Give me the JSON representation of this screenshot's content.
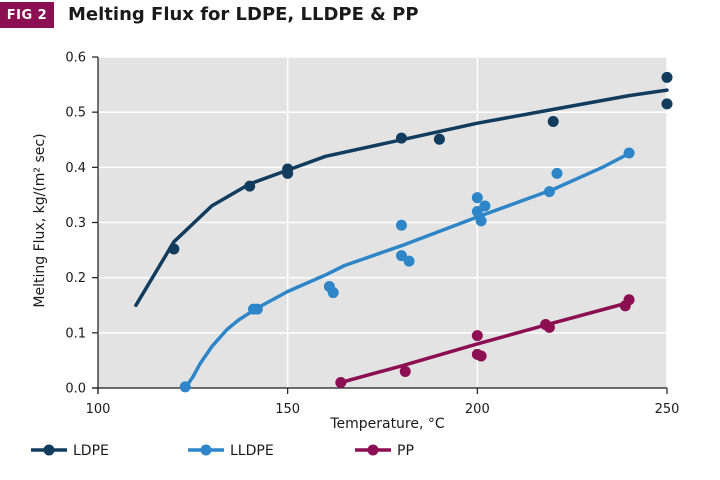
{
  "figure": {
    "badge": "FIG 2"
  },
  "chart_data": {
    "type": "line",
    "title": "Melting Flux for LDPE, LLDPE & PP",
    "xlabel": "Temperature, °C",
    "ylabel": "Melting Flux, kg/(m² sec)",
    "xlim": [
      100,
      250
    ],
    "ylim": [
      0,
      0.6
    ],
    "xticks": [
      100,
      150,
      200,
      250
    ],
    "xtick_labels": [
      "100",
      "150",
      "200",
      "250"
    ],
    "yticks": [
      0.0,
      0.1,
      0.2,
      0.3,
      0.4,
      0.5,
      0.6
    ],
    "ytick_labels": [
      "0.0",
      "0.1",
      "0.2",
      "0.3",
      "0.4",
      "0.5",
      "0.6"
    ],
    "grid": true,
    "legend_position": "bottom",
    "series": [
      {
        "name": "LDPE",
        "color": "#123c5e",
        "line": [
          [
            110,
            0.15
          ],
          [
            120,
            0.265
          ],
          [
            130,
            0.33
          ],
          [
            140,
            0.37
          ],
          [
            150,
            0.395
          ],
          [
            160,
            0.42
          ],
          [
            180,
            0.45
          ],
          [
            200,
            0.48
          ],
          [
            220,
            0.505
          ],
          [
            240,
            0.53
          ],
          [
            250,
            0.54
          ]
        ],
        "points": [
          [
            120,
            0.252
          ],
          [
            140,
            0.366
          ],
          [
            150,
            0.397
          ],
          [
            150,
            0.389
          ],
          [
            180,
            0.453
          ],
          [
            190,
            0.451
          ],
          [
            220,
            0.483
          ],
          [
            250,
            0.563
          ],
          [
            250,
            0.515
          ]
        ]
      },
      {
        "name": "LLDPE",
        "color": "#2e86c8",
        "line": [
          [
            123,
            0.0
          ],
          [
            125,
            0.02
          ],
          [
            127,
            0.045
          ],
          [
            130,
            0.075
          ],
          [
            134,
            0.106
          ],
          [
            137,
            0.123
          ],
          [
            142,
            0.145
          ],
          [
            150,
            0.175
          ],
          [
            160,
            0.205
          ],
          [
            165,
            0.222
          ],
          [
            180,
            0.258
          ],
          [
            200,
            0.31
          ],
          [
            220,
            0.36
          ],
          [
            233,
            0.4
          ],
          [
            240,
            0.425
          ]
        ],
        "points": [
          [
            123,
            0.002
          ],
          [
            141,
            0.143
          ],
          [
            142,
            0.143
          ],
          [
            161,
            0.184
          ],
          [
            162,
            0.173
          ],
          [
            180,
            0.295
          ],
          [
            180,
            0.24
          ],
          [
            182,
            0.23
          ],
          [
            200,
            0.345
          ],
          [
            200,
            0.32
          ],
          [
            201,
            0.303
          ],
          [
            202,
            0.33
          ],
          [
            219,
            0.356
          ],
          [
            221,
            0.389
          ],
          [
            240,
            0.426
          ]
        ]
      },
      {
        "name": "PP",
        "color": "#8c0f53",
        "line": [
          [
            164,
            0.01
          ],
          [
            180,
            0.04
          ],
          [
            200,
            0.08
          ],
          [
            220,
            0.118
          ],
          [
            240,
            0.155
          ]
        ],
        "points": [
          [
            164,
            0.01
          ],
          [
            181,
            0.03
          ],
          [
            200,
            0.095
          ],
          [
            200,
            0.061
          ],
          [
            201,
            0.058
          ],
          [
            218,
            0.115
          ],
          [
            219,
            0.11
          ],
          [
            239,
            0.149
          ],
          [
            240,
            0.16
          ]
        ]
      }
    ]
  }
}
